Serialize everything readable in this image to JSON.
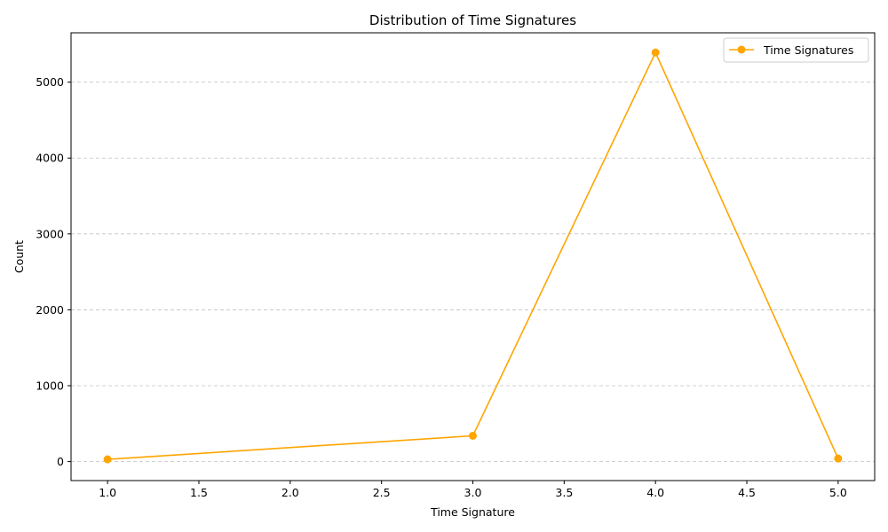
{
  "chart_data": {
    "type": "line",
    "title": "Distribution of Time Signatures",
    "xlabel": "Time Signature",
    "ylabel": "Count",
    "xlim": [
      0.8,
      5.2
    ],
    "ylim": [
      -250,
      5650
    ],
    "xticks": [
      "1.0",
      "1.5",
      "2.0",
      "2.5",
      "3.0",
      "3.5",
      "4.0",
      "4.5",
      "5.0"
    ],
    "yticks": [
      "0",
      "1000",
      "2000",
      "3000",
      "4000",
      "5000"
    ],
    "grid": "y-dashed",
    "legend_position": "top-right",
    "series": [
      {
        "name": "Time Signatures",
        "color": "#FFA500",
        "marker": "circle",
        "x": [
          1.0,
          3.0,
          4.0,
          5.0
        ],
        "y": [
          30,
          340,
          5390,
          40
        ]
      }
    ]
  }
}
